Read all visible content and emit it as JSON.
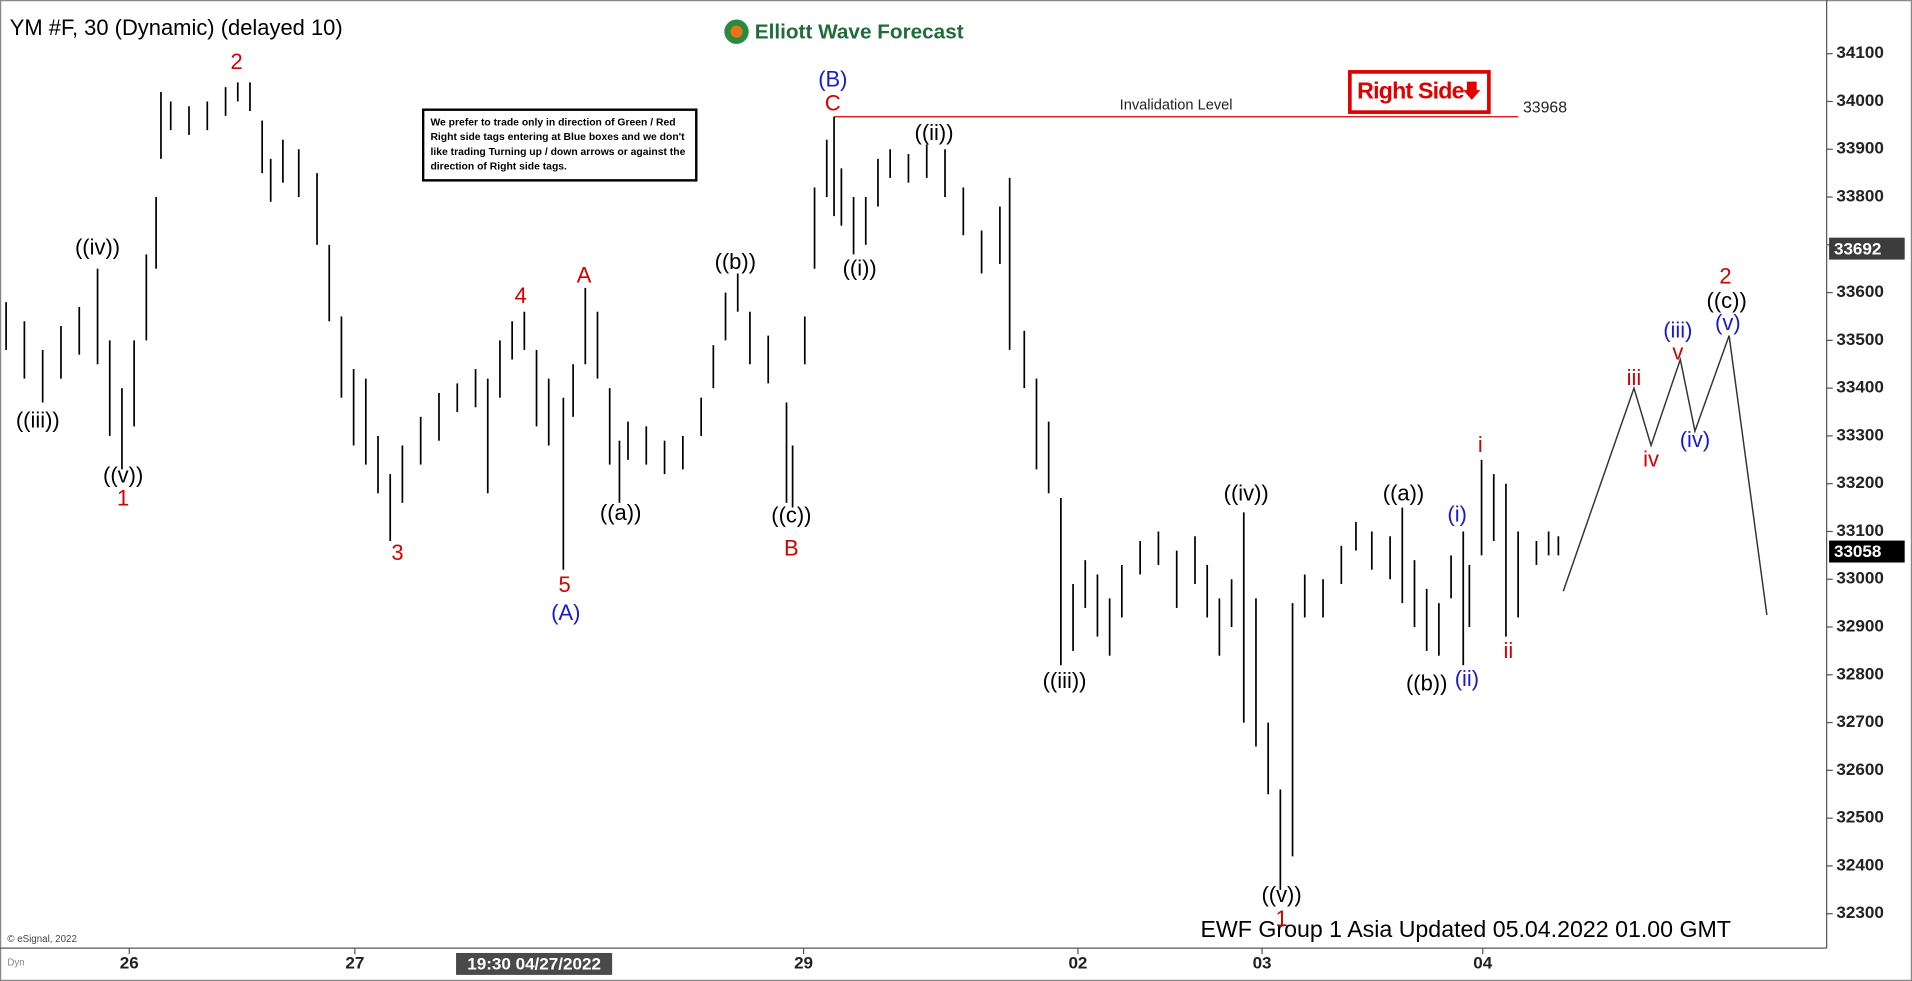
{
  "chart_data": {
    "type": "ohlc",
    "title": "YM #F, 30 (Dynamic) (delayed 10)",
    "brand": "Elliott Wave Forecast",
    "notice": "We prefer to trade only in direction of Green / Red Right side tags entering at Blue boxes and we don't like trading Turning up / down arrows or against the direction of Right side tags.",
    "tag": "Right Side",
    "footer": "EWF Group 1 Asia Updated 05.04.2022 01.00 GMT",
    "copyright": "© eSignal, 2022",
    "corner": "Dyn",
    "color": "#000000",
    "xlim": [
      0,
      300
    ],
    "ylim": [
      32228,
      34192
    ],
    "yticks": [
      34100,
      34000,
      33900,
      33800,
      33700,
      33600,
      33500,
      33400,
      33300,
      33200,
      33100,
      33000,
      32900,
      32800,
      32700,
      32600,
      32500,
      32400,
      32300
    ],
    "xticks": [
      {
        "value": 21.2,
        "label": "26"
      },
      {
        "value": 58.2,
        "label": "27"
      },
      {
        "value": 131.8,
        "label": "29"
      },
      {
        "value": 176.8,
        "label": "02"
      },
      {
        "value": 207,
        "label": "03"
      },
      {
        "value": 243.2,
        "label": "04"
      }
    ],
    "cursor": {
      "x": 87.6,
      "label": "19:30 04/27/2022"
    },
    "x": [
      1,
      4,
      7,
      10,
      13,
      16,
      18,
      20,
      22,
      24,
      25.6,
      26.4,
      28,
      31,
      34,
      37,
      39,
      41,
      43,
      44.4,
      46.4,
      49,
      52,
      54,
      56,
      58,
      60,
      62,
      64,
      66,
      69,
      72,
      75,
      78,
      80,
      82,
      84,
      86,
      88,
      90,
      92.4,
      94,
      96,
      98,
      100,
      101.6,
      103,
      106,
      109,
      112,
      115,
      117,
      119,
      121,
      123,
      126,
      129,
      130,
      132,
      133.6,
      135.6,
      136.8,
      138,
      140,
      142,
      144,
      146,
      149,
      152,
      155,
      158,
      161,
      164,
      165.6,
      168,
      170,
      172,
      174,
      176,
      178,
      180,
      182,
      184,
      187,
      190,
      193,
      196,
      198,
      200,
      202,
      204,
      206,
      208,
      210,
      212,
      214,
      217,
      220,
      222.4,
      225,
      228,
      230,
      232,
      234,
      236,
      238,
      240,
      241,
      243,
      245,
      247,
      249,
      252,
      254,
      255.6
    ],
    "high": [
      33580,
      33540,
      33480,
      33530,
      33570,
      33650,
      33500,
      33400,
      33500,
      33680,
      33800,
      34020,
      34000,
      33990,
      34000,
      34030,
      34040,
      34040,
      33960,
      33880,
      33920,
      33900,
      33850,
      33700,
      33550,
      33440,
      33420,
      33300,
      33220,
      33280,
      33340,
      33390,
      33410,
      33440,
      33420,
      33500,
      33540,
      33560,
      33480,
      33420,
      33380,
      33450,
      33610,
      33560,
      33400,
      33290,
      33330,
      33320,
      33290,
      33300,
      33380,
      33490,
      33600,
      33640,
      33560,
      33510,
      33370,
      33280,
      33550,
      33820,
      33920,
      33968,
      33860,
      33800,
      33800,
      33880,
      33900,
      33890,
      33910,
      33900,
      33820,
      33730,
      33780,
      33840,
      33520,
      33420,
      33330,
      33170,
      32990,
      33040,
      33010,
      32960,
      33030,
      33080,
      33100,
      33060,
      33090,
      33030,
      32960,
      33000,
      33140,
      32960,
      32700,
      32560,
      32950,
      33010,
      33000,
      33070,
      33120,
      33100,
      33090,
      33150,
      33040,
      32980,
      32950,
      33050,
      33100,
      33030,
      33250,
      33220,
      33200,
      33100,
      33080,
      33100,
      33090
    ],
    "low": [
      33480,
      33420,
      33370,
      33420,
      33470,
      33450,
      33300,
      33230,
      33320,
      33500,
      33650,
      33880,
      33940,
      33930,
      33940,
      33970,
      34000,
      33980,
      33850,
      33790,
      33830,
      33800,
      33700,
      33540,
      33380,
      33280,
      33240,
      33180,
      33080,
      33160,
      33240,
      33290,
      33350,
      33360,
      33180,
      33380,
      33460,
      33480,
      33320,
      33280,
      33020,
      33340,
      33450,
      33420,
      33240,
      33160,
      33250,
      33240,
      33220,
      33230,
      33300,
      33400,
      33500,
      33560,
      33450,
      33410,
      33160,
      33150,
      33450,
      33650,
      33800,
      33760,
      33740,
      33680,
      33700,
      33780,
      33840,
      33830,
      33840,
      33800,
      33720,
      33640,
      33660,
      33480,
      33400,
      33230,
      33180,
      32820,
      32850,
      32940,
      32880,
      32840,
      32920,
      33010,
      33030,
      32940,
      32990,
      32920,
      32840,
      32900,
      32700,
      32650,
      32550,
      32350,
      32420,
      32920,
      32920,
      32990,
      33060,
      33020,
      33000,
      32950,
      32900,
      32850,
      32840,
      32960,
      32820,
      32900,
      33050,
      33080,
      32880,
      32920,
      33030,
      33050,
      33050
    ],
    "projection": {
      "x": [
        256.4,
        268,
        270.8,
        275.6,
        278,
        283.6,
        289.8
      ],
      "y": [
        32975,
        33400,
        33280,
        33460,
        33310,
        33510,
        32925
      ]
    },
    "invalidation": {
      "label": "Invalidation Level",
      "value": 33968,
      "x": [
        136.8,
        249
      ]
    },
    "price_markers": [
      {
        "value": 33692,
        "color": "#3c3c3c"
      },
      {
        "value": 33058,
        "color": "#000000"
      }
    ],
    "wave_labels": [
      {
        "color": "#000000",
        "labels": [
          {
            "text": "((iii))",
            "x": 6.2,
            "y": 33330
          },
          {
            "text": "((iv))",
            "x": 16,
            "y": 33692
          },
          {
            "text": "((v))",
            "x": 20.2,
            "y": 33215
          },
          {
            "text": "((a))",
            "x": 101.8,
            "y": 33136
          },
          {
            "text": "((b))",
            "x": 120.6,
            "y": 33661
          },
          {
            "text": "((c))",
            "x": 129.8,
            "y": 33131
          },
          {
            "text": "((i))",
            "x": 141,
            "y": 33648
          },
          {
            "text": "((ii))",
            "x": 153.2,
            "y": 33932
          },
          {
            "text": "((iii))",
            "x": 174.6,
            "y": 32784
          },
          {
            "text": "((iv))",
            "x": 204.4,
            "y": 33177
          },
          {
            "text": "((v))",
            "x": 210.2,
            "y": 32337
          },
          {
            "text": "((a))",
            "x": 230.2,
            "y": 33177
          },
          {
            "text": "((b))",
            "x": 234,
            "y": 32779
          },
          {
            "text": "((c))",
            "x": 283.2,
            "y": 33580
          }
        ]
      },
      {
        "color": "#d40000",
        "labels": [
          {
            "text": "1",
            "x": 20.2,
            "y": 33166
          },
          {
            "text": "2",
            "x": 38.8,
            "y": 34080
          },
          {
            "text": "3",
            "x": 65.2,
            "y": 33052
          },
          {
            "text": "4",
            "x": 85.4,
            "y": 33590
          },
          {
            "text": "5",
            "x": 92.6,
            "y": 32985
          },
          {
            "text": "A",
            "x": 95.8,
            "y": 33633
          },
          {
            "text": "B",
            "x": 129.8,
            "y": 33062
          },
          {
            "text": "C",
            "x": 136.6,
            "y": 33993
          },
          {
            "text": "1",
            "x": 210.2,
            "y": 32286
          },
          {
            "text": "i",
            "x": 242.8,
            "y": 33279
          },
          {
            "text": "ii",
            "x": 247.4,
            "y": 32847
          },
          {
            "text": "iii",
            "x": 268,
            "y": 33419
          },
          {
            "text": "iv",
            "x": 270.8,
            "y": 33248
          },
          {
            "text": "v",
            "x": 275.2,
            "y": 33472
          },
          {
            "text": "2",
            "x": 283,
            "y": 33631
          }
        ]
      },
      {
        "color": "#1a1acc",
        "labels": [
          {
            "text": "(A)",
            "x": 92.8,
            "y": 32927
          },
          {
            "text": "(B)",
            "x": 136.6,
            "y": 34044
          },
          {
            "text": "(i)",
            "x": 239,
            "y": 33133
          },
          {
            "text": "(ii)",
            "x": 240.6,
            "y": 32789
          },
          {
            "text": "(iii)",
            "x": 275.2,
            "y": 33518
          },
          {
            "text": "(iv)",
            "x": 278,
            "y": 33289
          },
          {
            "text": "(v)",
            "x": 283.4,
            "y": 33534
          }
        ]
      }
    ]
  }
}
